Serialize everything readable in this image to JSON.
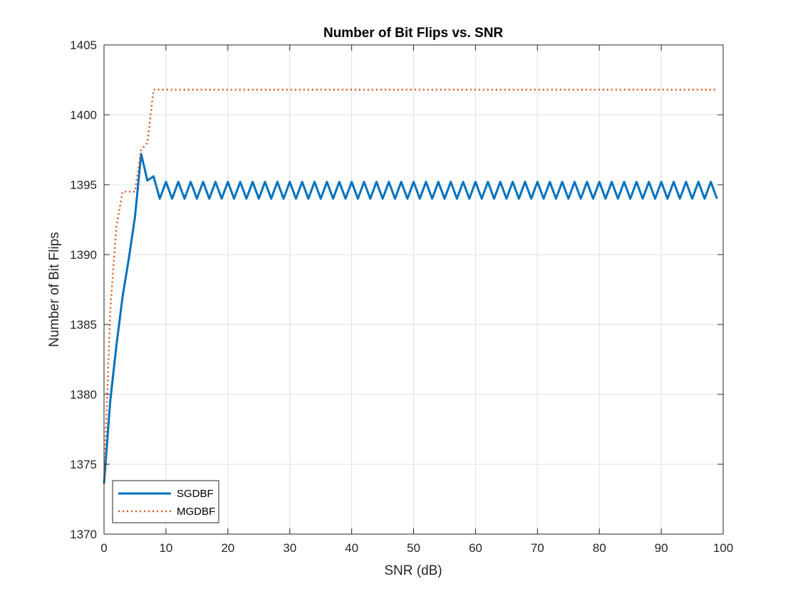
{
  "chart_data": {
    "type": "line",
    "title": "Number of Bit Flips vs. SNR",
    "xlabel": "SNR (dB)",
    "ylabel": "Number of Bit Flips",
    "xlim": [
      0,
      100
    ],
    "ylim": [
      1370,
      1405
    ],
    "xticks": [
      0,
      10,
      20,
      30,
      40,
      50,
      60,
      70,
      80,
      90,
      100
    ],
    "yticks": [
      1370,
      1375,
      1380,
      1385,
      1390,
      1395,
      1400,
      1405
    ],
    "grid": true,
    "legend_position": "bottom-left",
    "series": [
      {
        "name": "SGDBF",
        "style": "solid",
        "color": "#0072BD",
        "x": [
          0,
          1,
          2,
          3,
          4,
          5,
          6,
          7,
          8,
          9,
          10,
          11,
          12,
          13,
          14,
          15,
          16,
          17,
          18,
          19,
          20,
          21,
          22,
          23,
          24,
          25,
          26,
          27,
          28,
          29,
          30,
          31,
          32,
          33,
          34,
          35,
          36,
          37,
          38,
          39,
          40,
          41,
          42,
          43,
          44,
          45,
          46,
          47,
          48,
          49,
          50,
          51,
          52,
          53,
          54,
          55,
          56,
          57,
          58,
          59,
          60,
          61,
          62,
          63,
          64,
          65,
          66,
          67,
          68,
          69,
          70,
          71,
          72,
          73,
          74,
          75,
          76,
          77,
          78,
          79,
          80,
          81,
          82,
          83,
          84,
          85,
          86,
          87,
          88,
          89,
          90,
          91,
          92,
          93,
          94,
          95,
          96,
          97,
          98,
          99
        ],
        "y": [
          1373.6,
          1379.5,
          1383.5,
          1387.0,
          1389.7,
          1392.7,
          1397.2,
          1395.3,
          1395.6,
          1394.0,
          1395.2,
          1394.0,
          1395.2,
          1394.0,
          1395.2,
          1394.0,
          1395.2,
          1394.0,
          1395.2,
          1394.0,
          1395.2,
          1394.0,
          1395.2,
          1394.0,
          1395.2,
          1394.0,
          1395.2,
          1394.0,
          1395.2,
          1394.0,
          1395.2,
          1394.0,
          1395.2,
          1394.0,
          1395.2,
          1394.0,
          1395.2,
          1394.0,
          1395.2,
          1394.0,
          1395.2,
          1394.0,
          1395.2,
          1394.0,
          1395.2,
          1394.0,
          1395.2,
          1394.0,
          1395.2,
          1394.0,
          1395.2,
          1394.0,
          1395.2,
          1394.0,
          1395.2,
          1394.0,
          1395.2,
          1394.0,
          1395.2,
          1394.0,
          1395.2,
          1394.0,
          1395.2,
          1394.0,
          1395.2,
          1394.0,
          1395.2,
          1394.0,
          1395.2,
          1394.0,
          1395.2,
          1394.0,
          1395.2,
          1394.0,
          1395.2,
          1394.0,
          1395.2,
          1394.0,
          1395.2,
          1394.0,
          1395.2,
          1394.0,
          1395.2,
          1394.0,
          1395.2,
          1394.0,
          1395.2,
          1394.0,
          1395.2,
          1394.0,
          1395.2,
          1394.0,
          1395.2,
          1394.0,
          1395.2,
          1394.0,
          1395.2,
          1394.0,
          1395.2,
          1394.0
        ]
      },
      {
        "name": "MGDBF",
        "style": "dotted",
        "color": "#D95319",
        "x": [
          0,
          1,
          2,
          3,
          4,
          5,
          6,
          7,
          8,
          9,
          10,
          11,
          12,
          13,
          14,
          15,
          16,
          17,
          18,
          19,
          20,
          21,
          22,
          23,
          24,
          25,
          26,
          27,
          28,
          29,
          30,
          31,
          32,
          33,
          34,
          35,
          36,
          37,
          38,
          39,
          40,
          41,
          42,
          43,
          44,
          45,
          46,
          47,
          48,
          49,
          50,
          51,
          52,
          53,
          54,
          55,
          56,
          57,
          58,
          59,
          60,
          61,
          62,
          63,
          64,
          65,
          66,
          67,
          68,
          69,
          70,
          71,
          72,
          73,
          74,
          75,
          76,
          77,
          78,
          79,
          80,
          81,
          82,
          83,
          84,
          85,
          86,
          87,
          88,
          89,
          90,
          91,
          92,
          93,
          94,
          95,
          96,
          97,
          98,
          99
        ],
        "y": [
          1373.6,
          1386.0,
          1392.0,
          1394.5,
          1394.5,
          1394.5,
          1397.5,
          1398.0,
          1401.8,
          1401.8,
          1401.8,
          1401.8,
          1401.8,
          1401.8,
          1401.8,
          1401.8,
          1401.8,
          1401.8,
          1401.8,
          1401.8,
          1401.8,
          1401.8,
          1401.8,
          1401.8,
          1401.8,
          1401.8,
          1401.8,
          1401.8,
          1401.8,
          1401.8,
          1401.8,
          1401.8,
          1401.8,
          1401.8,
          1401.8,
          1401.8,
          1401.8,
          1401.8,
          1401.8,
          1401.8,
          1401.8,
          1401.8,
          1401.8,
          1401.8,
          1401.8,
          1401.8,
          1401.8,
          1401.8,
          1401.8,
          1401.8,
          1401.8,
          1401.8,
          1401.8,
          1401.8,
          1401.8,
          1401.8,
          1401.8,
          1401.8,
          1401.8,
          1401.8,
          1401.8,
          1401.8,
          1401.8,
          1401.8,
          1401.8,
          1401.8,
          1401.8,
          1401.8,
          1401.8,
          1401.8,
          1401.8,
          1401.8,
          1401.8,
          1401.8,
          1401.8,
          1401.8,
          1401.8,
          1401.8,
          1401.8,
          1401.8,
          1401.8,
          1401.8,
          1401.8,
          1401.8,
          1401.8,
          1401.8,
          1401.8,
          1401.8,
          1401.8,
          1401.8,
          1401.8,
          1401.8,
          1401.8,
          1401.8,
          1401.8,
          1401.8,
          1401.8,
          1401.8,
          1401.8,
          1401.8
        ]
      }
    ]
  }
}
